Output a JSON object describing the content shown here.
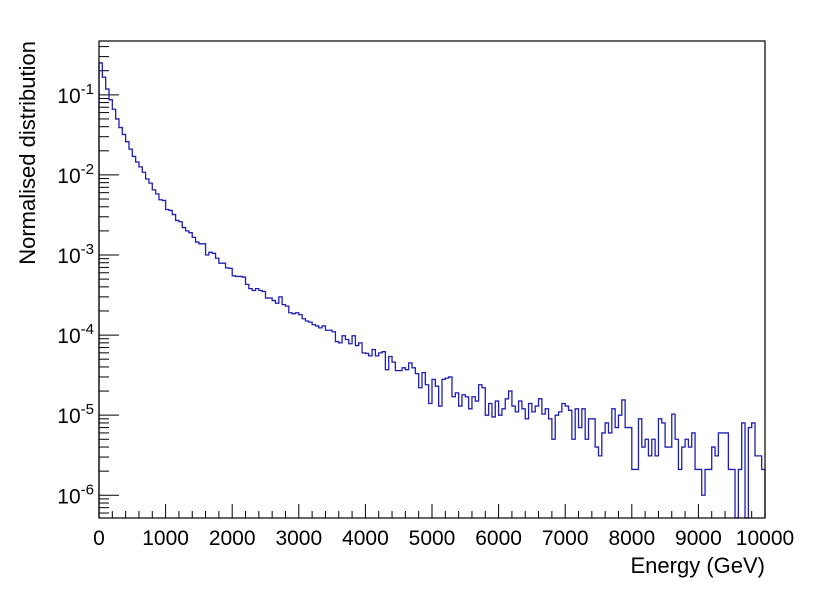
{
  "chart_data": {
    "type": "histogram",
    "title": "",
    "xlabel": "Energy (GeV)",
    "ylabel": "Normalised distribution",
    "xlim": [
      0,
      10000
    ],
    "ylim": [
      5.2e-07,
      0.47
    ],
    "yscale": "log",
    "grid": false,
    "legend": "none",
    "line_color": "#1f1fb4",
    "bin_width": 50,
    "x_ticks": [
      0,
      1000,
      2000,
      3000,
      4000,
      5000,
      6000,
      7000,
      8000,
      9000,
      10000
    ],
    "x_tick_labels": [
      "0",
      "1000",
      "2000",
      "3000",
      "4000",
      "5000",
      "6000",
      "7000",
      "8000",
      "9000",
      "10000"
    ],
    "y_ticks": [
      {
        "value": 0.1,
        "base": "10",
        "exp": "-1"
      },
      {
        "value": 0.01,
        "base": "10",
        "exp": "-2"
      },
      {
        "value": 0.001,
        "base": "10",
        "exp": "-3"
      },
      {
        "value": 0.0001,
        "base": "10",
        "exp": "-4"
      },
      {
        "value": 1e-05,
        "base": "10",
        "exp": "-5"
      },
      {
        "value": 1e-06,
        "base": "10",
        "exp": "-6"
      }
    ],
    "values": [
      0.25,
      0.166,
      0.118,
      0.087,
      0.066,
      0.05,
      0.039,
      0.032,
      0.026,
      0.021,
      0.017,
      0.0145,
      0.0126,
      0.0108,
      0.0089,
      0.0079,
      0.0065,
      0.0058,
      0.0049,
      0.0048,
      0.0037,
      0.0036,
      0.0032,
      0.0027,
      0.0026,
      0.0022,
      0.002,
      0.0019,
      0.00166,
      0.00145,
      0.00138,
      0.00138,
      0.001,
      0.00108,
      0.00105,
      0.00091,
      0.00079,
      0.00079,
      0.00069,
      0.00068,
      0.00055,
      0.00054,
      0.00054,
      0.00053,
      0.00043,
      0.00038,
      0.00036,
      0.00038,
      0.00036,
      0.00035,
      0.00029,
      0.00029,
      0.00027,
      0.00025,
      0.0003,
      0.00024,
      0.00023,
      0.00019,
      0.000185,
      0.00019,
      0.00018,
      0.00016,
      0.00015,
      0.000145,
      0.000135,
      0.00013,
      0.000123,
      0.00013,
      0.000115,
      0.000115,
      0.00011,
      8.3e-05,
      8e-05,
      9.8e-05,
      8.8e-05,
      7.8e-05,
      9.8e-05,
      7.4e-05,
      8e-05,
      6e-05,
      5.9e-05,
      5.5e-05,
      6.6e-05,
      5.5e-05,
      6e-05,
      6.2e-05,
      3.7e-05,
      5.4e-05,
      4.6e-05,
      3.6e-05,
      3.6e-05,
      3.9e-05,
      3.7e-05,
      4.5e-05,
      3.9e-05,
      3.3e-05,
      2.2e-05,
      3.4e-05,
      2.4e-05,
      1.4e-05,
      2.8e-05,
      2.3e-05,
      1.3e-05,
      2.8e-05,
      2.9e-05,
      3e-05,
      1.7e-05,
      1.9e-05,
      1.3e-05,
      1.8e-05,
      1.7e-05,
      1.2e-05,
      1.7e-05,
      1.5e-05,
      2.4e-05,
      2.2e-05,
      1e-05,
      1.4e-05,
      9.5e-06,
      1.5e-05,
      1e-05,
      1.2e-05,
      1.6e-05,
      2e-05,
      1.3e-05,
      1.1e-05,
      1.5e-05,
      1.2e-05,
      9e-06,
      1.4e-05,
      1.1e-05,
      1.3e-05,
      1.6e-05,
      1.03e-05,
      1.2e-05,
      9e-06,
      5e-06,
      1e-05,
      1.1e-05,
      1.4e-05,
      1.3e-05,
      1.15e-05,
      5e-06,
      1.2e-05,
      7e-06,
      1.2e-05,
      5e-06,
      9e-06,
      9e-06,
      4e-06,
      3.1e-06,
      6e-06,
      8e-06,
      6e-06,
      1.2e-05,
      7e-06,
      1e-05,
      1.55e-05,
      7e-06,
      7e-06,
      2.1e-06,
      2.1e-06,
      9e-06,
      4e-06,
      5e-06,
      3.1e-06,
      5e-06,
      3.1e-06,
      9e-06,
      8e-06,
      4e-06,
      4e-06,
      1.03e-05,
      5e-06,
      2.1e-06,
      4e-06,
      5e-06,
      4e-06,
      6e-06,
      2.1e-06,
      2.1e-06,
      1e-06,
      2.1e-06,
      2.1e-06,
      4e-06,
      3.1e-06,
      6e-06,
      6e-06,
      6e-06,
      2.1e-06,
      2.1e-06,
      0,
      2.1e-06,
      8e-06,
      0,
      7e-06,
      8e-06,
      3.1e-06,
      3.1e-06,
      2.1e-06
    ]
  }
}
